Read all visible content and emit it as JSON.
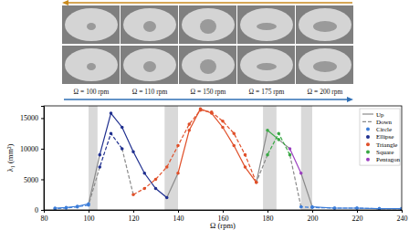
{
  "photo_labels": [
    "Ω = 100 rpm",
    "Ω = 110 rpm",
    "Ω = 150 rpm",
    "Ω = 175 rpm",
    "Ω = 200 rpm"
  ],
  "chart_data": {
    "type": "line",
    "xlabel": "Ω (rpm)",
    "ylabel": "λ₁ (mm²)",
    "xlim": [
      80,
      240
    ],
    "ylim": [
      0,
      17000
    ],
    "xticks": [
      80,
      100,
      120,
      140,
      160,
      180,
      200,
      220,
      240
    ],
    "yticks": [
      0,
      5000,
      10000,
      15000
    ],
    "marker": "circle",
    "legend": "upper right",
    "shaded_regions": [
      [
        100,
        104
      ],
      [
        134,
        140
      ],
      [
        178,
        184
      ],
      [
        195,
        200
      ]
    ],
    "shapes": [
      {
        "name": "Circle",
        "color": "#3c7dd9"
      },
      {
        "name": "Ellipse",
        "color": "#1f2f8f"
      },
      {
        "name": "Triangle",
        "color": "#e0502a"
      },
      {
        "name": "Square",
        "color": "#3aa845"
      },
      {
        "name": "Pentagon",
        "color": "#9b3fbf"
      }
    ],
    "branches": [
      {
        "name": "Up",
        "line_style": "solid",
        "color": "#8a8a8a",
        "segments": [
          {
            "shape": "Circle",
            "x": [
              85,
              90,
              95,
              100
            ],
            "values": [
              300,
              400,
              600,
              1000
            ]
          },
          {
            "shape": "Ellipse",
            "x": [
              105,
              110,
              115,
              120,
              125,
              130,
              135
            ],
            "values": [
              9000,
              15800,
              13500,
              9500,
              6000,
              3500,
              2000
            ]
          },
          {
            "shape": "Triangle",
            "x": [
              140,
              145,
              150,
              155,
              160,
              165,
              170,
              175
            ],
            "values": [
              6000,
              13000,
              16500,
              15800,
              13500,
              10500,
              7000,
              4500
            ]
          },
          {
            "shape": "Square",
            "x": [
              180,
              185
            ],
            "values": [
              13000,
              11500
            ]
          },
          {
            "shape": "Pentagon",
            "x": [
              190,
              195
            ],
            "values": [
              10000,
              6000
            ]
          },
          {
            "shape": "Circle",
            "x": [
              200,
              210,
              220,
              230,
              240
            ],
            "values": [
              500,
              300,
              300,
              200,
              200
            ]
          }
        ]
      },
      {
        "name": "Down",
        "line_style": "dashed",
        "color": "#8a8a8a",
        "segments": [
          {
            "shape": "Circle",
            "x": [
              240,
              230,
              220,
              210,
              200,
              195
            ],
            "values": [
              200,
              200,
              300,
              300,
              400,
              500
            ]
          },
          {
            "shape": "Square",
            "x": [
              190,
              185,
              180
            ],
            "values": [
              9000,
              12500,
              9000
            ]
          },
          {
            "shape": "Triangle",
            "x": [
              175,
              170,
              165,
              160,
              155,
              150,
              145,
              140,
              135,
              130,
              125,
              120
            ],
            "values": [
              4500,
              9000,
              12500,
              14500,
              16000,
              16300,
              14000,
              10500,
              7000,
              5000,
              3500,
              2500
            ]
          },
          {
            "shape": "Ellipse",
            "x": [
              115,
              110,
              105
            ],
            "values": [
              10000,
              12500,
              7000
            ]
          },
          {
            "shape": "Circle",
            "x": [
              100,
              95,
              90,
              85
            ],
            "values": [
              800,
              500,
              300,
              200
            ]
          }
        ]
      }
    ]
  }
}
